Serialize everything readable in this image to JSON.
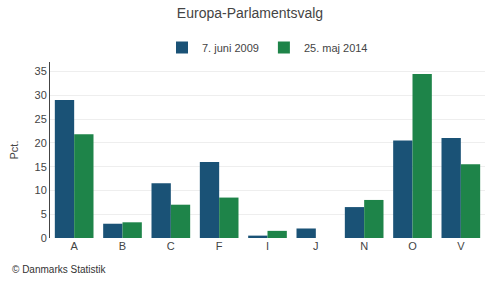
{
  "chart_data": {
    "type": "bar",
    "title": "Europa-Parlamentsvalg",
    "categories": [
      "A",
      "B",
      "C",
      "F",
      "I",
      "J",
      "N",
      "O",
      "V"
    ],
    "series": [
      {
        "name": "7. juni 2009",
        "color": "#1a5276",
        "values": [
          29.0,
          3.0,
          11.5,
          16.0,
          0.5,
          2.0,
          6.5,
          20.5,
          21.0
        ]
      },
      {
        "name": "25. maj 2014",
        "color": "#1e8449",
        "values": [
          21.8,
          3.3,
          7.0,
          8.5,
          1.5,
          0.0,
          8.0,
          34.5,
          15.5
        ]
      }
    ],
    "ylabel": "Pct.",
    "ylim": [
      0,
      37
    ],
    "yticks": [
      0,
      5,
      10,
      15,
      20,
      25,
      30,
      35
    ],
    "grid": true,
    "legend": "upper center",
    "annotations": [
      "© Danmarks Statistik"
    ]
  }
}
